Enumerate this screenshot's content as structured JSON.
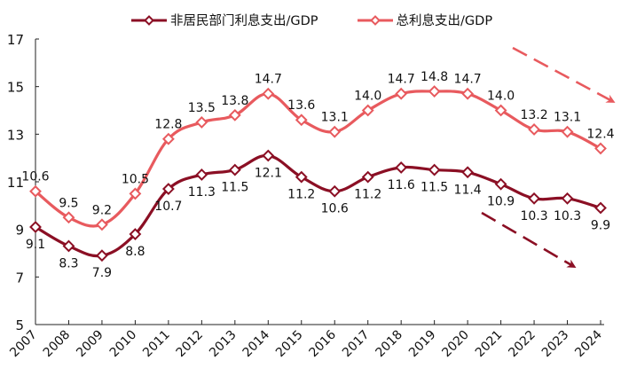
{
  "chart_data": {
    "type": "line",
    "title": "",
    "xlabel": "",
    "ylabel": "",
    "ylim": [
      5,
      17
    ],
    "yticks": [
      5,
      7,
      9,
      11,
      13,
      15,
      17
    ],
    "grid": false,
    "legend_position": "top",
    "categories": [
      "2007",
      "2008",
      "2009",
      "2010",
      "2011",
      "2012",
      "2013",
      "2014",
      "2015",
      "2016",
      "2017",
      "2018",
      "2019",
      "2020",
      "2021",
      "2022",
      "2023",
      "2024"
    ],
    "series": [
      {
        "name": "非居民部门利息支出/GDP",
        "color": "#8B0F24",
        "values": [
          9.1,
          8.3,
          7.9,
          8.8,
          10.7,
          11.3,
          11.5,
          12.1,
          11.2,
          10.6,
          11.2,
          11.6,
          11.5,
          11.4,
          10.9,
          10.3,
          10.3,
          9.9
        ],
        "label_position": "below"
      },
      {
        "name": "总利息支出/GDP",
        "color": "#E85A5E",
        "values": [
          10.6,
          9.5,
          9.2,
          10.5,
          12.8,
          13.5,
          13.8,
          14.7,
          13.6,
          13.1,
          14.0,
          14.7,
          14.8,
          14.7,
          14.0,
          13.2,
          13.1,
          12.4
        ],
        "label_position": "above"
      }
    ],
    "annotations": [
      {
        "type": "dashed-arrow",
        "color": "#E85A5E",
        "description": "downward trend arrow for 总利息支出/GDP",
        "from": [
          578,
          54
        ],
        "to": [
          690,
          114
        ]
      },
      {
        "type": "dashed-arrow",
        "color": "#8B0F24",
        "description": "downward trend arrow for 非居民部门利息支出/GDP",
        "from": [
          543,
          240
        ],
        "to": [
          646,
          300
        ]
      }
    ]
  },
  "legend": {
    "items": [
      {
        "label": "非居民部门利息支出/GDP",
        "color": "#8B0F24"
      },
      {
        "label": "总利息支出/GDP",
        "color": "#E85A5E"
      }
    ]
  }
}
